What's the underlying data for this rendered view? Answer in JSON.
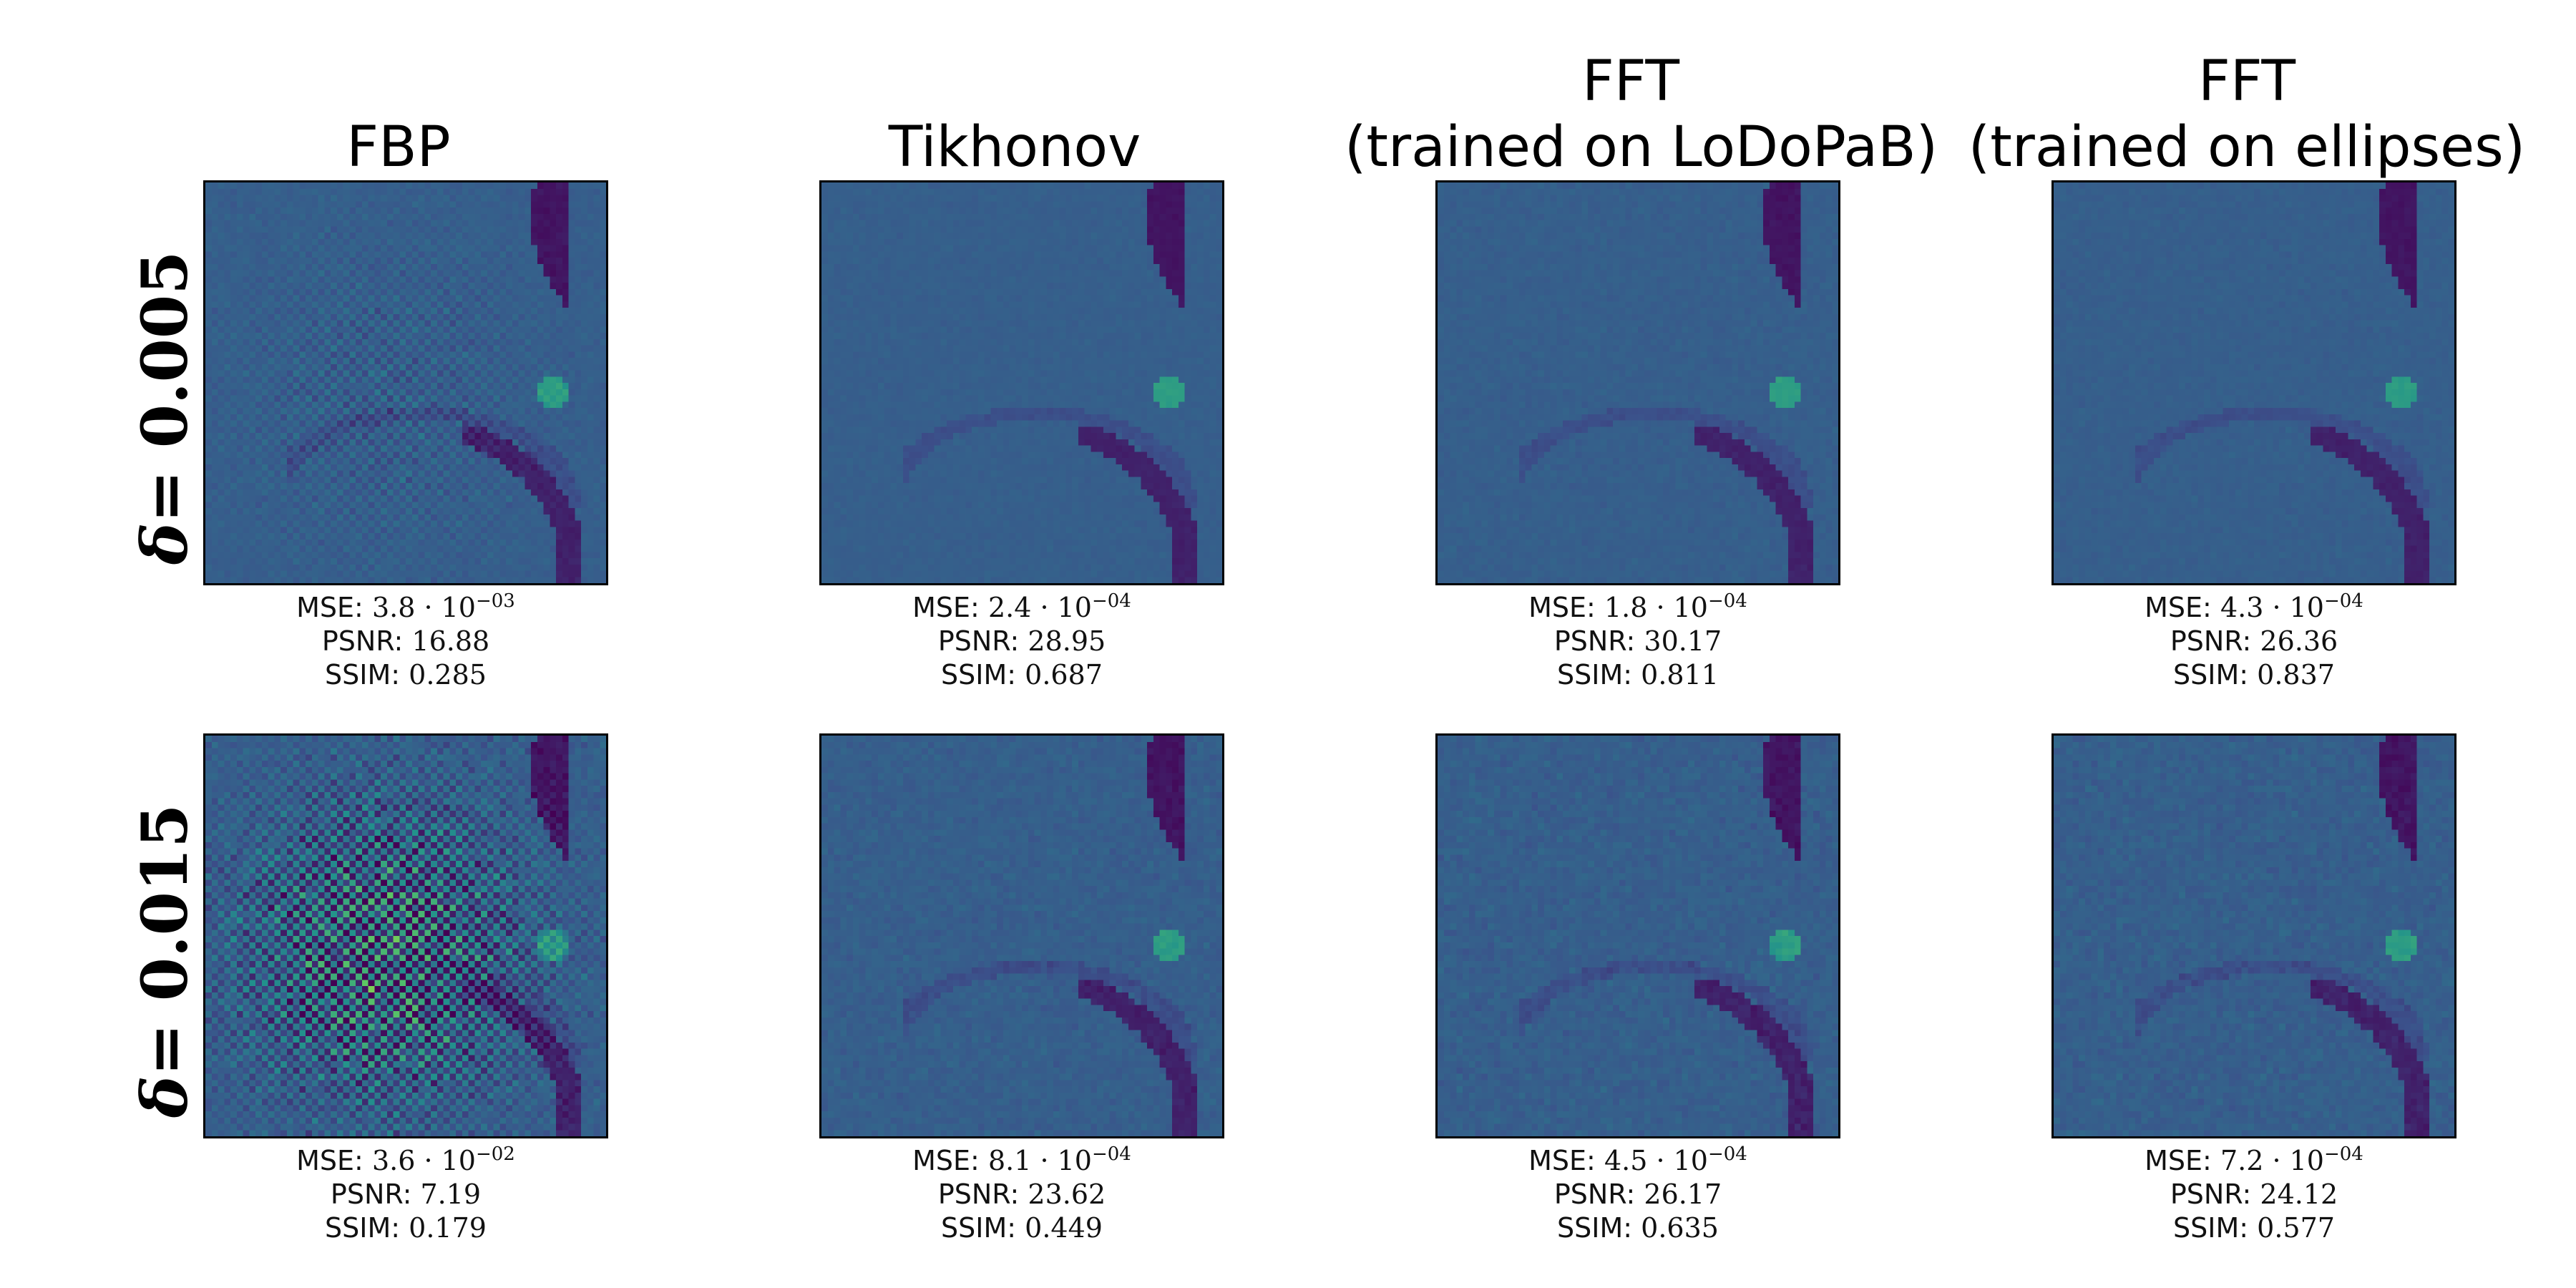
{
  "columns": [
    {
      "title": "FBP"
    },
    {
      "title": "Tikhonov"
    },
    {
      "title": "FFT\n(trained on LoDoPaB)"
    },
    {
      "title": "FFT\n(trained on ellipses)"
    }
  ],
  "rows": [
    {
      "delta_symbol": "δ",
      "delta_value": "= 0.005"
    },
    {
      "delta_symbol": "δ",
      "delta_value": "= 0.015"
    }
  ],
  "metric_labels": {
    "mse": "MSE: ",
    "psnr": "PSNR: ",
    "ssim": "SSIM: "
  },
  "results": [
    [
      {
        "mse_mantissa": "3.8 · 10",
        "mse_exp": "−03",
        "psnr": "16.88",
        "ssim": "0.285"
      },
      {
        "mse_mantissa": "2.4 · 10",
        "mse_exp": "−04",
        "psnr": "28.95",
        "ssim": "0.687"
      },
      {
        "mse_mantissa": "1.8 · 10",
        "mse_exp": "−04",
        "psnr": "30.17",
        "ssim": "0.811"
      },
      {
        "mse_mantissa": "4.3 · 10",
        "mse_exp": "−04",
        "psnr": "26.36",
        "ssim": "0.837"
      }
    ],
    [
      {
        "mse_mantissa": "3.6 · 10",
        "mse_exp": "−02",
        "psnr": "7.19",
        "ssim": "0.179"
      },
      {
        "mse_mantissa": "8.1 · 10",
        "mse_exp": "−04",
        "psnr": "23.62",
        "ssim": "0.449"
      },
      {
        "mse_mantissa": "4.5 · 10",
        "mse_exp": "−04",
        "psnr": "26.17",
        "ssim": "0.635"
      },
      {
        "mse_mantissa": "7.2 · 10",
        "mse_exp": "−04",
        "psnr": "24.12",
        "ssim": "0.577"
      }
    ]
  ],
  "colormap": "viridis",
  "colors": {
    "background": "#3b528b",
    "dark_band": "#3b1a5e",
    "highlight": "#2ca58d",
    "hot": "#fde725"
  }
}
